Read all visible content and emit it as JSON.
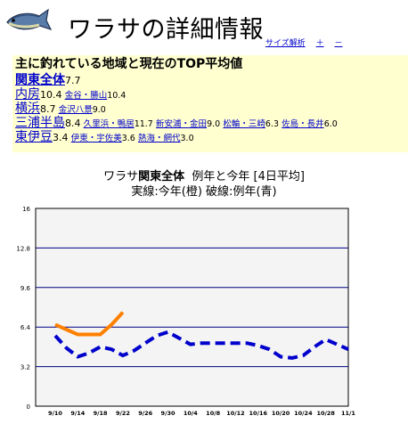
{
  "page_title": "ワラサの詳細情報",
  "header_links": [
    "サイズ解析",
    "＋",
    "－"
  ],
  "top_section": {
    "heading": "主に釣れている地域と現在のTOP平均値",
    "rows": [
      {
        "area": "関東全体",
        "value": "7.7",
        "bold": true,
        "subs": []
      },
      {
        "area": "内房",
        "value": "10.4",
        "subs": [
          {
            "name": "金谷・勝山",
            "value": "10.4"
          }
        ]
      },
      {
        "area": "横浜",
        "value": "8.7",
        "subs": [
          {
            "name": "金沢八景",
            "value": "9.0"
          }
        ]
      },
      {
        "area": "三浦半島",
        "value": "8.4",
        "subs": [
          {
            "name": "久里浜・鴨居",
            "value": "11.7"
          },
          {
            "name": "新安浦・金田",
            "value": "9.0"
          },
          {
            "name": "松輪・三崎",
            "value": "6.3"
          },
          {
            "name": "佐島・長井",
            "value": "6.0"
          }
        ]
      },
      {
        "area": "東伊豆",
        "value": "3.4",
        "subs": [
          {
            "name": "伊東・宇佐美",
            "value": "3.6"
          },
          {
            "name": "熱海・網代",
            "value": "3.0"
          }
        ]
      }
    ]
  },
  "chart_title_line1_prefix": "ワラサ",
  "chart_title_line1_bold": "関東全体",
  "chart_title_line1_suffix": "例年と今年 [4日平均]",
  "chart_title_line2": "実線:今年(橙)  破線:例年(青)",
  "chart_data": {
    "type": "line",
    "x": [
      "9/10",
      "9/14",
      "9/18",
      "9/22",
      "9/26",
      "9/30",
      "10/4",
      "10/8",
      "10/12",
      "10/16",
      "10/20",
      "10/24",
      "10/28",
      "11/1"
    ],
    "ylim": [
      0,
      16
    ],
    "y_ticks": [
      "16",
      "12.8",
      "9.6",
      "6.4",
      "3.2",
      "0"
    ],
    "grid": true,
    "series": [
      {
        "name": "今年",
        "color": "#ff8000",
        "dash": false,
        "points": [
          [
            0,
            6.6
          ],
          [
            0.5,
            6.2
          ],
          [
            1,
            5.8
          ],
          [
            1.5,
            5.8
          ],
          [
            2,
            5.8
          ],
          [
            2.5,
            6.6
          ],
          [
            3,
            7.6
          ]
        ]
      },
      {
        "name": "例年",
        "color": "#0000cc",
        "dash": true,
        "points": [
          [
            0,
            5.7
          ],
          [
            0.5,
            4.7
          ],
          [
            1,
            4.0
          ],
          [
            1.5,
            4.3
          ],
          [
            2,
            4.8
          ],
          [
            2.5,
            4.6
          ],
          [
            3,
            4.1
          ],
          [
            3.5,
            4.5
          ],
          [
            4,
            5.1
          ],
          [
            4.5,
            5.7
          ],
          [
            5,
            6.0
          ],
          [
            5.5,
            5.5
          ],
          [
            6,
            5.0
          ],
          [
            6.5,
            5.1
          ],
          [
            7,
            5.1
          ],
          [
            7.5,
            5.1
          ],
          [
            8,
            5.1
          ],
          [
            8.5,
            5.1
          ],
          [
            9,
            4.9
          ],
          [
            9.5,
            4.6
          ],
          [
            10,
            4.0
          ],
          [
            10.5,
            3.9
          ],
          [
            11,
            4.1
          ],
          [
            11.5,
            4.8
          ],
          [
            12,
            5.4
          ],
          [
            12.5,
            5.0
          ],
          [
            13,
            4.6
          ]
        ]
      }
    ]
  }
}
